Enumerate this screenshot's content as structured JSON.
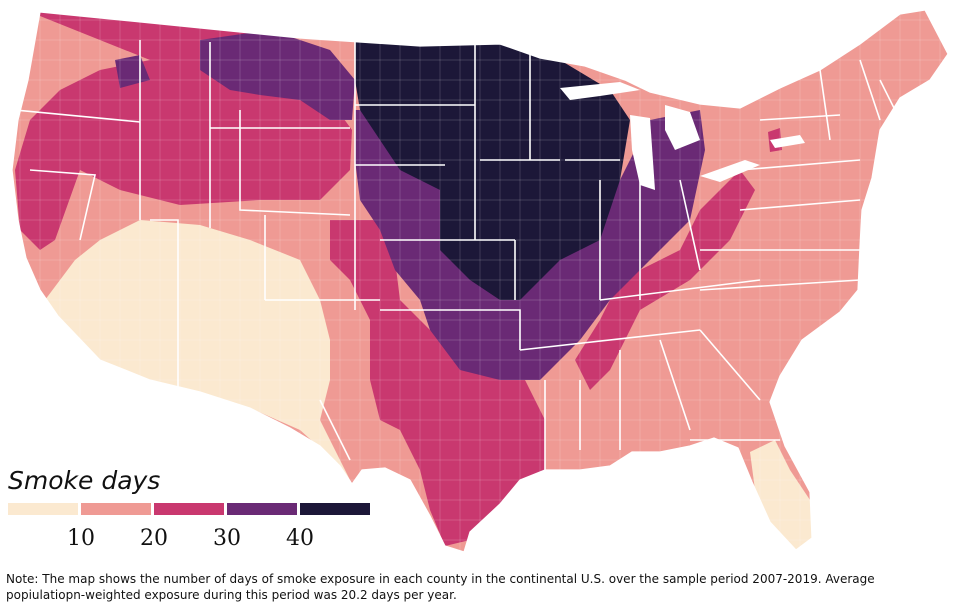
{
  "legend": {
    "title": "Smoke days",
    "bins": [
      {
        "label": "",
        "color": "#fbe9d0"
      },
      {
        "label": "10",
        "color": "#ef9a94"
      },
      {
        "label": "20",
        "color": "#c9386f"
      },
      {
        "label": "30",
        "color": "#6a2a75"
      },
      {
        "label": "40",
        "color": "#1c1738"
      }
    ],
    "tick_labels": [
      "10",
      "20",
      "30",
      "40"
    ]
  },
  "note": "Note: The map shows the number of days of smoke exposure in each county in the continental U.S. over the sample period 2007-2019. Average popiulatiopn-weighted exposure during this period was 20.2 days per year.",
  "colors": {
    "c1": "#fbe9d0",
    "c2": "#ef9a94",
    "c3": "#c9386f",
    "c4": "#6a2a75",
    "c5": "#1c1738",
    "border": "#ffffff"
  }
}
